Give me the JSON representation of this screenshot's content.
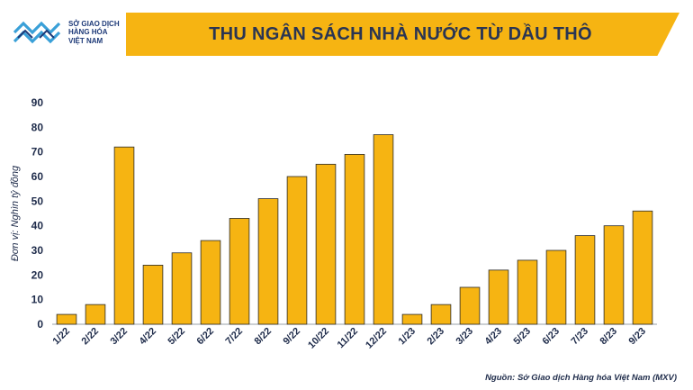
{
  "logo": {
    "lines": [
      "SỞ GIAO DỊCH",
      "HÀNG HÓA",
      "VIỆT NAM"
    ],
    "icon": "mxv-logo-icon"
  },
  "header": {
    "title": "THU NGÂN SÁCH NHÀ NƯỚC TỪ DẦU THÔ"
  },
  "source": "Nguồn: Sở Giao dịch Hàng hóa Việt Nam (MXV)",
  "colors": {
    "bar": "#f6b412",
    "bar_edge": "#2a2a2a",
    "banner": "#f6b412",
    "text": "#1e2b4a"
  },
  "chart_data": {
    "type": "bar",
    "title": "THU NGÂN SÁCH NHÀ NƯỚC TỪ DẦU THÔ",
    "xlabel": "",
    "ylabel": "Đơn vị: Nghìn tỷ đồng",
    "ylim": [
      0,
      90
    ],
    "yticks": [
      0,
      10,
      20,
      30,
      40,
      50,
      60,
      70,
      80,
      90
    ],
    "grid": false,
    "categories": [
      "1/22",
      "2/22",
      "3/22",
      "4/22",
      "5/22",
      "6/22",
      "7/22",
      "8/22",
      "9/22",
      "10/22",
      "11/22",
      "12/22",
      "1/23",
      "2/23",
      "3/23",
      "4/23",
      "5/23",
      "6/23",
      "7/23",
      "8/23",
      "9/23"
    ],
    "values": [
      4,
      8,
      72,
      24,
      29,
      34,
      43,
      51,
      60,
      65,
      69,
      77,
      4,
      8,
      15,
      22,
      26,
      30,
      36,
      40,
      46
    ]
  }
}
